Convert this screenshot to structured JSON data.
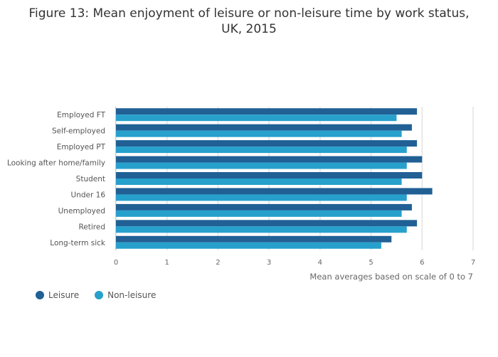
{
  "chart_data": {
    "type": "bar",
    "orientation": "horizontal",
    "title": "Figure 13: Mean enjoyment of leisure or non-leisure time by work status, UK, 2015",
    "title_lines": [
      "Figure 13: Mean enjoyment of leisure or non-leisure time by work status,",
      "UK, 2015"
    ],
    "categories": [
      "Employed FT",
      "Self-employed",
      "Employed PT",
      "Looking after home/family",
      "Student",
      "Under 16",
      "Unemployed",
      "Retired",
      "Long-term sick"
    ],
    "series": [
      {
        "name": "Leisure",
        "color": "#206095",
        "values": [
          5.9,
          5.8,
          5.9,
          6.0,
          6.0,
          6.2,
          5.8,
          5.9,
          5.4
        ]
      },
      {
        "name": "Non-leisure",
        "color": "#27a0cc",
        "values": [
          5.5,
          5.6,
          5.7,
          5.7,
          5.6,
          5.7,
          5.6,
          5.7,
          5.2
        ]
      }
    ],
    "xlabel": "Mean averages based on scale of 0 to 7",
    "ylabel": "",
    "xlim": [
      0,
      7
    ],
    "xticks": [
      "0",
      "1",
      "2",
      "3",
      "4",
      "5",
      "6",
      "7"
    ],
    "grid": true,
    "legend_position": "bottom-left"
  }
}
